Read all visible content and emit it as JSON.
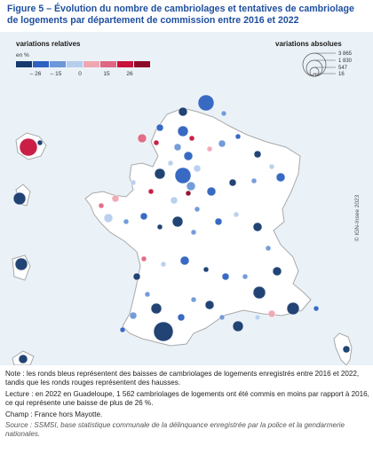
{
  "title": "Figure 5 – Évolution du nombre de cambriolages et tentatives de cambriolage de logements par département de commission entre 2016 et 2022",
  "legend_relative": {
    "title": "variations relatives",
    "unit": "en %",
    "ticks": [
      "– 26",
      "– 15",
      "0",
      "15",
      "26"
    ],
    "colors": [
      "#163a6e",
      "#2e62c0",
      "#6d97d8",
      "#b7cdee",
      "#f0a6b2",
      "#e06682",
      "#c8123c",
      "#8f0a2a"
    ]
  },
  "legend_absolute": {
    "title": "variations absolues",
    "values": [
      "3 865",
      "1 830",
      "547",
      "16"
    ]
  },
  "watermark": "© IGN-Insee 2023",
  "notes": {
    "note": "Note : les ronds bleus représentent des baisses de cambriolages de logements enregistrés entre 2016 et 2022, tandis que les ronds rouges représentent des hausses.",
    "lecture": "Lecture : en 2022 en Guadeloupe, 1 562 cambriolages de logements ont été commis en moins par rapport à 2016, ce qui représente une baisse de plus de 26 %.",
    "champ": "Champ : France hors Mayotte.",
    "source": "Source : SSMSI, base statistique communale de la délinquance enregistrée par la police et la gendarmerie nationales."
  }
}
